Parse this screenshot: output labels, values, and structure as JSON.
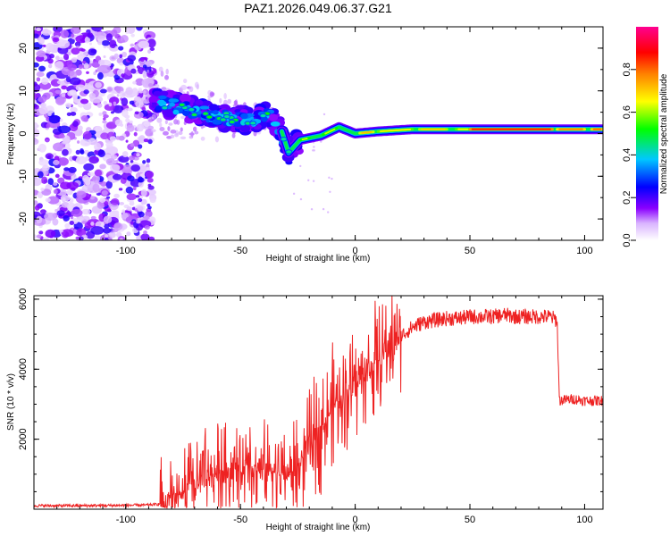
{
  "figure": {
    "title": "PAZ1.2026.049.06.37.G21"
  },
  "chart_data": [
    {
      "type": "heatmap",
      "xlabel": "Height of straight line (km)",
      "ylabel": "Frequency (Hz)",
      "xlim": [
        -140,
        108
      ],
      "ylim": [
        -25,
        25
      ],
      "xticks": [
        -100,
        -50,
        0,
        50,
        100
      ],
      "xtick_labels": [
        "-100",
        "-50",
        "0",
        "50",
        "100"
      ],
      "yticks": [
        -20,
        -10,
        0,
        10,
        20
      ],
      "ytick_labels": [
        "-20",
        "-10",
        "0",
        "10",
        "20"
      ],
      "ridge": {
        "description_points": [
          {
            "x": -87,
            "y": 7.5
          },
          {
            "x": -75,
            "y": 6.0
          },
          {
            "x": -60,
            "y": 4.0
          },
          {
            "x": -45,
            "y": 3.0
          },
          {
            "x": -38,
            "y": 4.5
          },
          {
            "x": -32,
            "y": 0.5
          },
          {
            "x": -29,
            "y": -4.5
          },
          {
            "x": -24,
            "y": -1.5
          },
          {
            "x": -15,
            "y": -0.5
          },
          {
            "x": -7,
            "y": 1.5
          },
          {
            "x": 0,
            "y": 0.0
          },
          {
            "x": 10,
            "y": 0.5
          },
          {
            "x": 25,
            "y": 1.0
          },
          {
            "x": 50,
            "y": 1.0
          },
          {
            "x": 108,
            "y": 1.0
          }
        ]
      },
      "colorbar": {
        "label": "Normalized spectral amplitude",
        "range": [
          0,
          1
        ],
        "ticks": [
          0.0,
          0.2,
          0.4,
          0.6,
          0.8
        ],
        "tick_labels": [
          "0.0",
          "0.2",
          "0.4",
          "0.6",
          "0.8"
        ],
        "colors": [
          "#ffffff",
          "#8a00ff",
          "#0000ff",
          "#00c8ff",
          "#00ff00",
          "#ffff00",
          "#ff8000",
          "#ff0000",
          "#ff0090"
        ]
      }
    },
    {
      "type": "line",
      "xlabel": "Height of straight line (km)",
      "ylabel": "SNR (10 * v/v)",
      "xlim": [
        -140,
        108
      ],
      "ylim": [
        0,
        6100
      ],
      "xticks": [
        -100,
        -50,
        0,
        50,
        100
      ],
      "xtick_labels": [
        "-100",
        "-50",
        "0",
        "50",
        "100"
      ],
      "yticks": [
        2000,
        4000,
        6000
      ],
      "ytick_labels": [
        "2000",
        "4000",
        "6000"
      ],
      "series": [
        {
          "name": "SNR",
          "color": "#ee2222",
          "x": [
            -140,
            -120,
            -100,
            -90,
            -85,
            -80,
            -75,
            -70,
            -65,
            -60,
            -55,
            -50,
            -45,
            -40,
            -35,
            -30,
            -25,
            -20,
            -15,
            -10,
            -5,
            0,
            5,
            10,
            15,
            20,
            25,
            30,
            35,
            40,
            45,
            50,
            55,
            60,
            65,
            70,
            75,
            80,
            85,
            88,
            89,
            95,
            100,
            108
          ],
          "y": [
            100,
            100,
            110,
            120,
            150,
            280,
            450,
            700,
            900,
            1100,
            1200,
            1200,
            1100,
            1100,
            1100,
            1000,
            1200,
            1800,
            2400,
            2900,
            3300,
            3600,
            4000,
            4300,
            4650,
            4950,
            5200,
            5350,
            5400,
            5450,
            5450,
            5500,
            5500,
            5500,
            5550,
            5500,
            5500,
            5500,
            5500,
            5400,
            3100,
            3150,
            3100,
            3100
          ]
        }
      ]
    }
  ]
}
